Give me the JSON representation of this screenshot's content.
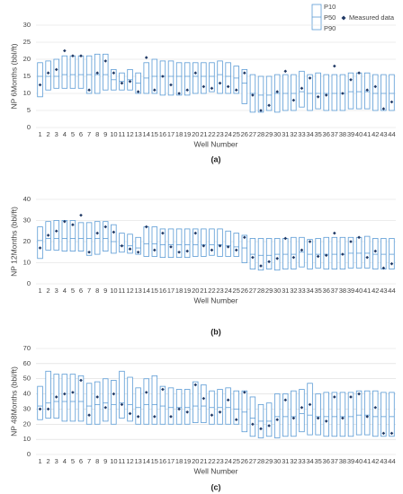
{
  "chart_data": [
    {
      "type": "box",
      "ylabel": "NP 6Months (bbl/ft)",
      "xlabel": "Well Number",
      "caption": "(a)",
      "categories": [
        "1",
        "2",
        "3",
        "4",
        "5",
        "6",
        "7",
        "8",
        "9",
        "10",
        "11",
        "12",
        "13",
        "14",
        "15",
        "16",
        "17",
        "18",
        "19",
        "20",
        "21",
        "22",
        "23",
        "24",
        "25",
        "26",
        "27",
        "28",
        "29",
        "30",
        "31",
        "32",
        "33",
        "34",
        "35",
        "36",
        "37",
        "38",
        "39",
        "40",
        "41",
        "42",
        "43",
        "44"
      ],
      "ylim": [
        0,
        30
      ],
      "yticks": [
        0,
        5,
        10,
        15,
        20,
        25,
        30
      ],
      "grid": true,
      "series": [
        {
          "name": "P10",
          "color": "#5b9bd5",
          "values": [
            19,
            19.5,
            20,
            21,
            21,
            21,
            21,
            21.5,
            21.5,
            17,
            16,
            17,
            16,
            19,
            20,
            19.5,
            19.5,
            19,
            19,
            19,
            19,
            19,
            19.5,
            19,
            18,
            17,
            15.5,
            15,
            15,
            15.5,
            15.5,
            15.5,
            16.5,
            15.5,
            16,
            15.5,
            15.5,
            15.5,
            16,
            16,
            16,
            15.5,
            15.5,
            15.5
          ]
        },
        {
          "name": "P50",
          "color": "#5b9bd5",
          "values": [
            15,
            15,
            15,
            15.5,
            15.5,
            15.5,
            15.5,
            15.5,
            15.5,
            14,
            13.5,
            14,
            13,
            14.5,
            15,
            15,
            15,
            15,
            15,
            15,
            15,
            15,
            15.5,
            15,
            14.5,
            13,
            10,
            9.5,
            9.5,
            10,
            10,
            10,
            10.5,
            10,
            10,
            10,
            10,
            10,
            10.5,
            10.5,
            10.5,
            10,
            10,
            10
          ]
        },
        {
          "name": "P90",
          "color": "#5b9bd5",
          "values": [
            9,
            11,
            11.5,
            11.5,
            11.5,
            11.5,
            10,
            10,
            11,
            11,
            11,
            11,
            10,
            10,
            10,
            9.5,
            9.5,
            9.5,
            9.5,
            10,
            10,
            10.5,
            10,
            10,
            10,
            7,
            4.5,
            4.5,
            5,
            4.5,
            5,
            5,
            6,
            5,
            5.5,
            5,
            5,
            5,
            5.5,
            5.5,
            5.5,
            5,
            5,
            5
          ]
        },
        {
          "name": "Measured data",
          "color": "#1f3864",
          "values": [
            12.5,
            16,
            17,
            22.5,
            21,
            21,
            11,
            16,
            19.5,
            16,
            13,
            13.5,
            10.5,
            20.5,
            11,
            15,
            12.5,
            10,
            11,
            16,
            12,
            11.5,
            13,
            12,
            11,
            16,
            9.5,
            5,
            6.5,
            10.5,
            16.5,
            8,
            11.5,
            14.5,
            9,
            9.5,
            18,
            10,
            14,
            16,
            11,
            12,
            5.5,
            7.5
          ]
        }
      ]
    },
    {
      "type": "box",
      "ylabel": "NP 12Months (bbl/ft)",
      "xlabel": "Well Number",
      "caption": "(b)",
      "categories": [
        "1",
        "2",
        "3",
        "4",
        "5",
        "6",
        "7",
        "8",
        "9",
        "10",
        "11",
        "12",
        "13",
        "14",
        "15",
        "16",
        "17",
        "18",
        "19",
        "20",
        "21",
        "22",
        "23",
        "24",
        "25",
        "26",
        "27",
        "28",
        "29",
        "30",
        "31",
        "32",
        "33",
        "34",
        "35",
        "36",
        "37",
        "38",
        "39",
        "40",
        "41",
        "42",
        "43",
        "44"
      ],
      "ylim": [
        0,
        40
      ],
      "yticks": [
        0,
        10,
        20,
        30,
        40
      ],
      "grid": true,
      "series": [
        {
          "color": "#5b9bd5",
          "values": [
            27,
            29.5,
            30,
            30,
            30,
            29,
            29,
            29.5,
            29.5,
            28,
            24,
            23.5,
            22,
            27,
            27,
            26,
            26,
            26,
            26,
            26,
            26,
            26,
            26,
            25,
            24,
            23,
            21.5,
            21.5,
            21.5,
            21.5,
            21.5,
            22,
            22,
            21,
            21.5,
            22,
            22,
            22,
            22,
            22,
            22.5,
            21.5,
            21.5,
            21.5
          ]
        },
        {
          "color": "#5b9bd5",
          "values": [
            20.5,
            21.5,
            21.5,
            21.5,
            21.5,
            21.5,
            21.5,
            21.5,
            21.5,
            20,
            18,
            18,
            17,
            19,
            19,
            18.5,
            18.5,
            18.5,
            18.5,
            18.5,
            18.5,
            18.5,
            18.5,
            18,
            17.5,
            17,
            14,
            13.5,
            13.5,
            14,
            14,
            14,
            15,
            14,
            14,
            14,
            14,
            14,
            14.5,
            14.5,
            14.5,
            14,
            14,
            14
          ]
        },
        {
          "color": "#5b9bd5",
          "values": [
            12,
            16,
            16,
            15.5,
            15.5,
            15.5,
            13.5,
            14,
            15.5,
            14.5,
            15,
            14.5,
            14,
            13,
            13,
            12.5,
            12.5,
            12.5,
            12.5,
            13,
            13,
            13.5,
            13,
            13,
            13,
            10,
            7,
            6.5,
            7,
            6.5,
            7,
            7,
            8,
            7,
            7.5,
            7,
            7,
            7,
            7.5,
            7.5,
            7.5,
            7,
            7,
            7
          ]
        },
        {
          "color": "#1f3864",
          "values": [
            17,
            23,
            25,
            29.5,
            28,
            32.5,
            15,
            24,
            27,
            24.5,
            18,
            16.5,
            15,
            27,
            16,
            24,
            17.5,
            15,
            15.5,
            24,
            18,
            16,
            18,
            17.5,
            16,
            22,
            12.5,
            8.5,
            10.5,
            12,
            21.5,
            12.5,
            16,
            20,
            13,
            13.5,
            24,
            14,
            20,
            22,
            12.5,
            15.5,
            7.5,
            9.5
          ]
        }
      ]
    },
    {
      "type": "box",
      "ylabel": "NP 48Months (bbl/ft)",
      "xlabel": "Well Number",
      "caption": "(c)",
      "categories": [
        "1",
        "2",
        "3",
        "4",
        "5",
        "6",
        "7",
        "8",
        "9",
        "10",
        "11",
        "12",
        "13",
        "14",
        "15",
        "16",
        "17",
        "18",
        "19",
        "20",
        "21",
        "22",
        "23",
        "24",
        "25",
        "26",
        "27",
        "28",
        "29",
        "30",
        "31",
        "32",
        "33",
        "34",
        "35",
        "36",
        "37",
        "38",
        "39",
        "40",
        "41",
        "42",
        "43",
        "44"
      ],
      "ylim": [
        0,
        70
      ],
      "yticks": [
        0,
        10,
        20,
        30,
        40,
        50,
        60,
        70
      ],
      "grid": true,
      "series": [
        {
          "color": "#5b9bd5",
          "values": [
            45,
            55,
            53,
            53,
            53,
            52,
            47,
            48,
            50,
            49,
            55,
            51,
            44,
            50,
            52,
            45,
            44,
            43,
            43,
            48,
            46,
            42,
            43,
            44,
            42,
            42,
            38,
            33,
            34,
            40,
            40,
            42,
            43,
            47,
            40,
            41,
            41,
            41,
            41,
            42,
            42,
            42,
            41,
            41
          ]
        },
        {
          "color": "#5b9bd5",
          "values": [
            32,
            34,
            35,
            35,
            35,
            35,
            32,
            33,
            34,
            33,
            34,
            33,
            31,
            33,
            33,
            32,
            31,
            31,
            31,
            32,
            32,
            31,
            31,
            31,
            30,
            28,
            24,
            22,
            22,
            25,
            25,
            25,
            27,
            26,
            25,
            25,
            25,
            25,
            25,
            26,
            26,
            25,
            25,
            25
          ]
        },
        {
          "color": "#5b9bd5",
          "values": [
            23,
            24,
            24,
            22,
            22,
            22,
            20,
            20,
            22,
            20,
            24,
            22,
            20,
            20,
            20,
            20,
            20,
            20,
            20,
            21,
            21,
            20,
            20,
            20,
            20,
            15,
            12,
            11,
            12,
            11,
            12,
            12,
            15,
            13,
            13,
            12,
            12,
            12,
            12,
            13,
            13,
            12,
            12,
            12
          ]
        },
        {
          "color": "#1f3864",
          "values": [
            30,
            30,
            38,
            40,
            41,
            49,
            26,
            38,
            31,
            40,
            33,
            27,
            25,
            41,
            25,
            43,
            25,
            30,
            28,
            46,
            37,
            26,
            28,
            36,
            23,
            41,
            20,
            17,
            19,
            23,
            36,
            24,
            31,
            33,
            24,
            22,
            38,
            24,
            38,
            40,
            25,
            31,
            14,
            14
          ]
        }
      ]
    }
  ]
}
